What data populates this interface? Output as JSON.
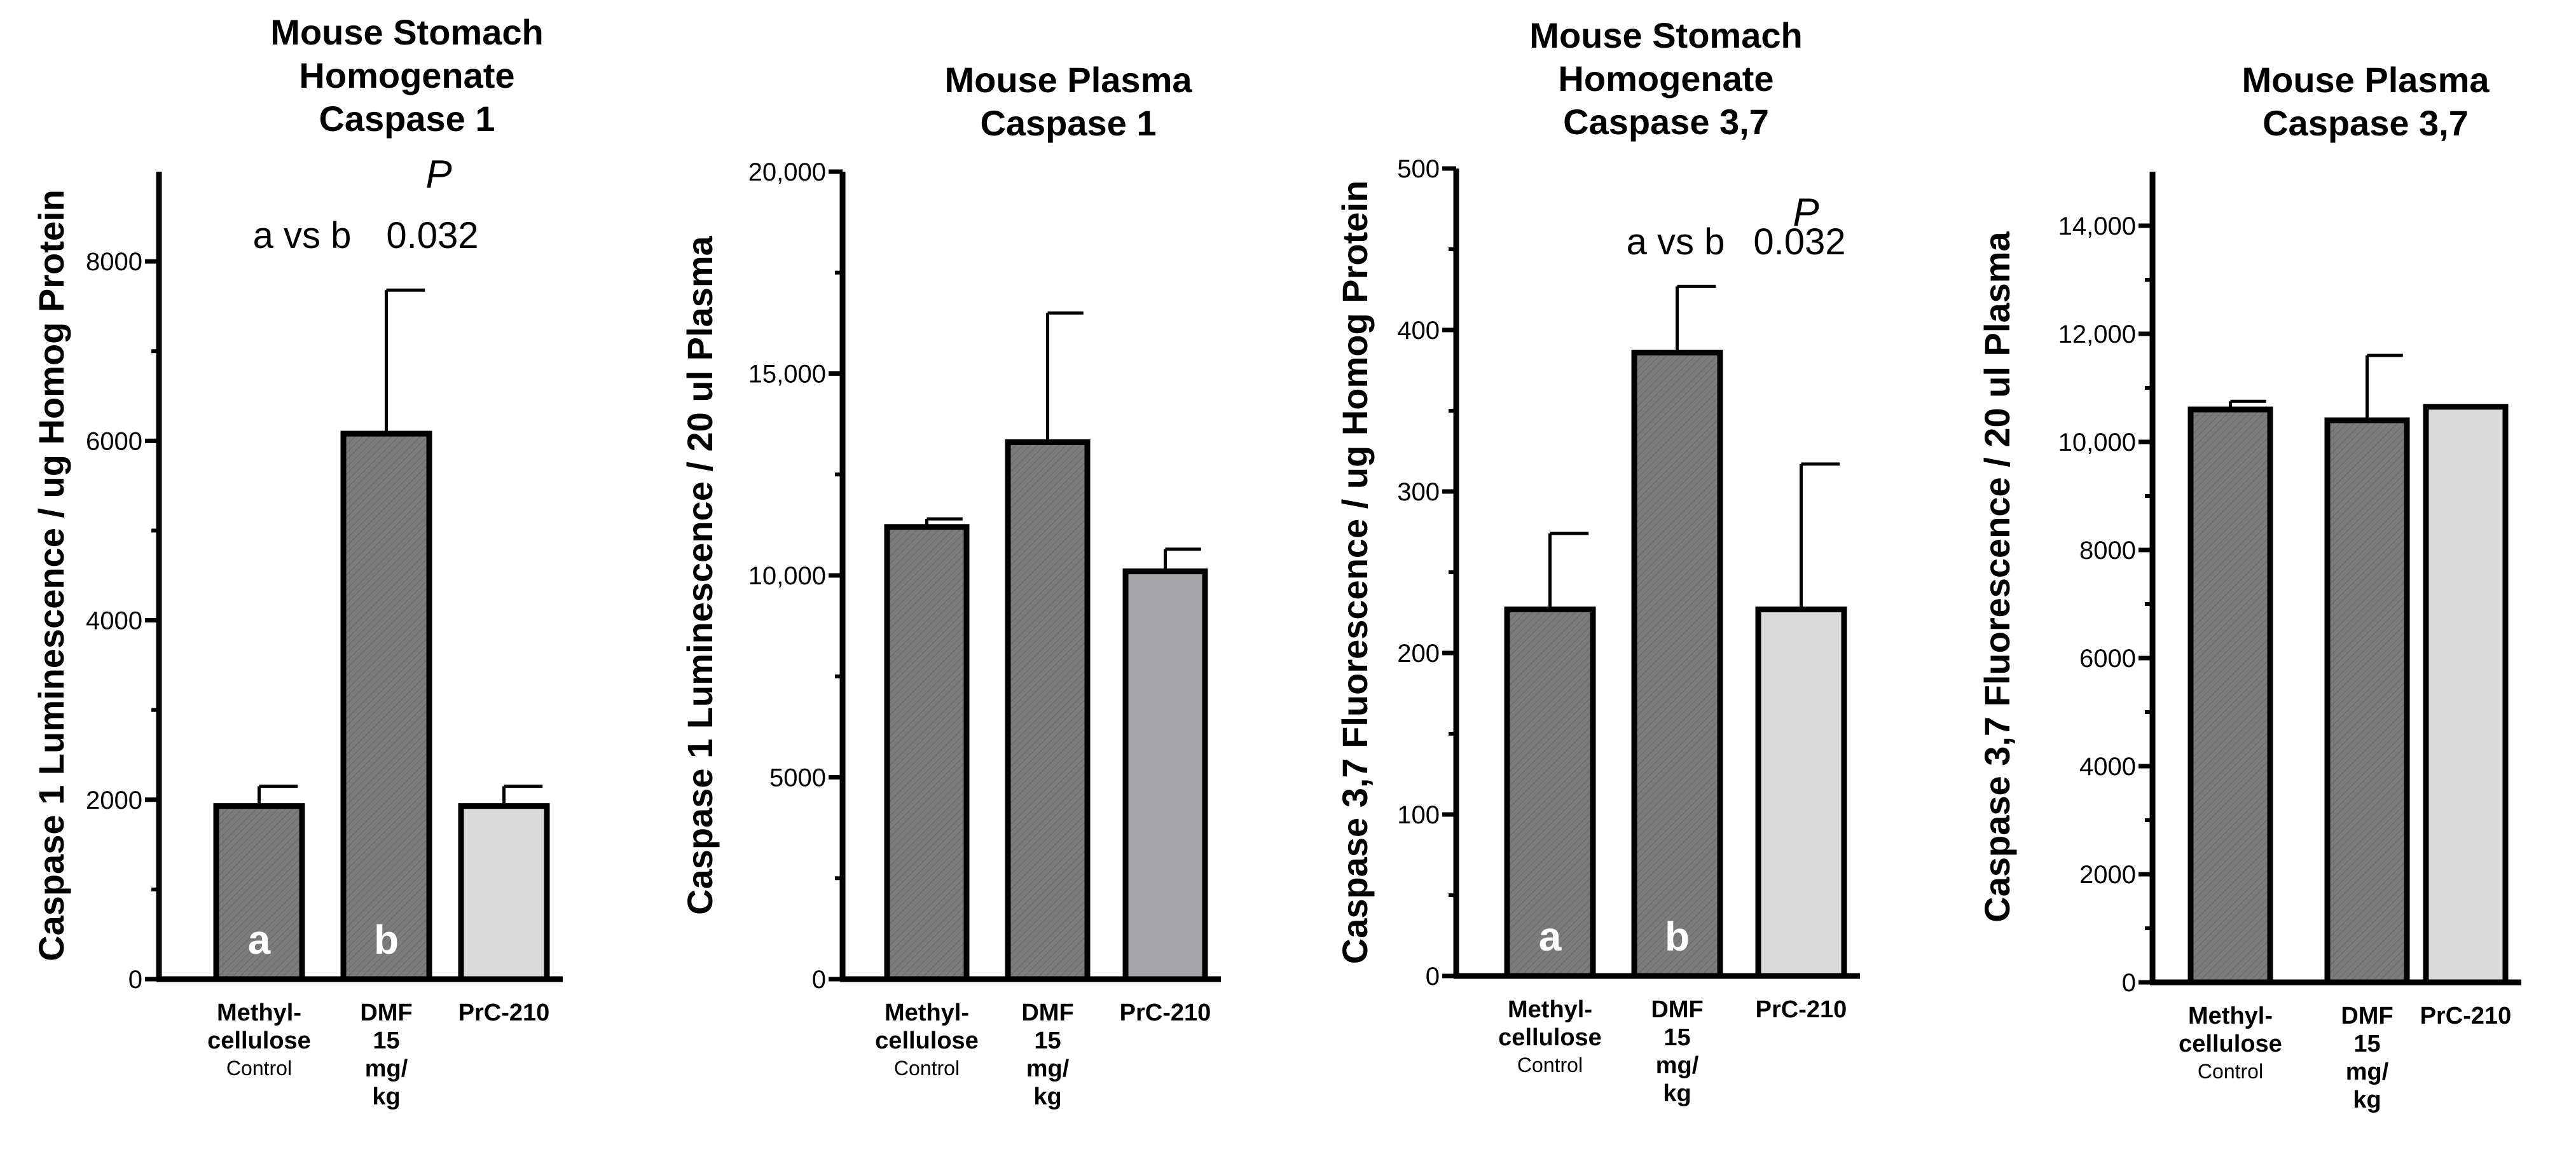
{
  "colors": {
    "dark_bar": "#7c7c7c",
    "mid_bar": "#a5a5a7",
    "light_bar": "#d9d9d9",
    "outline": "#000000"
  },
  "chart_data": [
    {
      "type": "bar",
      "title_lines": [
        "Mouse Stomach",
        "Homogenate",
        "Caspase 1"
      ],
      "ylabel": "Caspase 1 Luminescence / ug Homog Protein",
      "ylim": [
        0,
        9000
      ],
      "yticks": [
        0,
        2000,
        4000,
        6000,
        8000
      ],
      "ytick_labels": [
        "0",
        "2000",
        "4000",
        "6000",
        "8000"
      ],
      "categories": [
        "Methyl-cellulose Control",
        "DMF 15 mg/kg",
        "PrC-210"
      ],
      "values": [
        1930,
        6080,
        1930
      ],
      "errors": [
        220,
        1600,
        220
      ],
      "bar_labels": [
        "a",
        "b",
        ""
      ],
      "fills": [
        "dark",
        "dark",
        "light"
      ],
      "annotation": {
        "comparison": "a vs b",
        "p_label": "P",
        "p_value": "0.032"
      }
    },
    {
      "type": "bar",
      "title_lines": [
        "Mouse Plasma",
        "Caspase 1"
      ],
      "ylabel": "Caspase 1 Luminescence / 20 ul Plasma",
      "ylim": [
        0,
        20000
      ],
      "yticks": [
        0,
        5000,
        10000,
        15000,
        20000
      ],
      "ytick_labels": [
        "0",
        "5000",
        "10,000",
        "15,000",
        "20,000"
      ],
      "categories": [
        "Methyl-cellulose Control",
        "DMF 15 mg/kg",
        "PrC-210"
      ],
      "values": [
        11200,
        13300,
        10100
      ],
      "errors": [
        200,
        3200,
        550
      ],
      "bar_labels": [
        "",
        "",
        ""
      ],
      "fills": [
        "dark",
        "dark",
        "mid"
      ]
    },
    {
      "type": "bar",
      "title_lines": [
        "Mouse Stomach",
        "Homogenate",
        "Caspase 3,7"
      ],
      "ylabel": "Caspase 3,7 Fluorescence / ug Homog Protein",
      "ylim": [
        0,
        500
      ],
      "yticks": [
        0,
        100,
        200,
        300,
        400,
        500
      ],
      "ytick_labels": [
        "0",
        "100",
        "200",
        "300",
        "400",
        "500"
      ],
      "categories": [
        "Methyl-cellulose Control",
        "DMF 15 mg/kg",
        "PrC-210"
      ],
      "values": [
        227,
        386,
        227
      ],
      "errors": [
        47,
        41,
        90
      ],
      "bar_labels": [
        "a",
        "b",
        ""
      ],
      "fills": [
        "dark",
        "dark",
        "light"
      ],
      "annotation": {
        "comparison": "a vs b",
        "p_label": "P",
        "p_value": "0.032"
      }
    },
    {
      "type": "bar",
      "title_lines": [
        "Mouse Plasma",
        "Caspase 3,7"
      ],
      "ylabel": "Caspase 3,7 Fluorescence / 20 ul Plasma",
      "ylim": [
        0,
        15000
      ],
      "yticks": [
        0,
        2000,
        4000,
        6000,
        8000,
        10000,
        12000,
        14000
      ],
      "ytick_labels": [
        "0",
        "2000",
        "4000",
        "6000",
        "8000",
        "10,000",
        "12,000",
        "14,000"
      ],
      "categories": [
        "Methyl-cellulose Control",
        "DMF 15 mg/kg",
        "PrC-210"
      ],
      "values": [
        10600,
        10400,
        10650
      ],
      "errors": [
        150,
        1200,
        0
      ],
      "bar_labels": [
        "",
        "",
        ""
      ],
      "fills": [
        "dark",
        "dark",
        "light"
      ]
    }
  ],
  "x_category_display": [
    {
      "lines": [
        "Methyl-",
        "cellulose"
      ],
      "sub": "Control"
    },
    {
      "lines": [
        "DMF",
        "15",
        "mg/",
        "kg"
      ],
      "sub": ""
    },
    {
      "lines": [
        "PrC-210"
      ],
      "sub": ""
    }
  ]
}
